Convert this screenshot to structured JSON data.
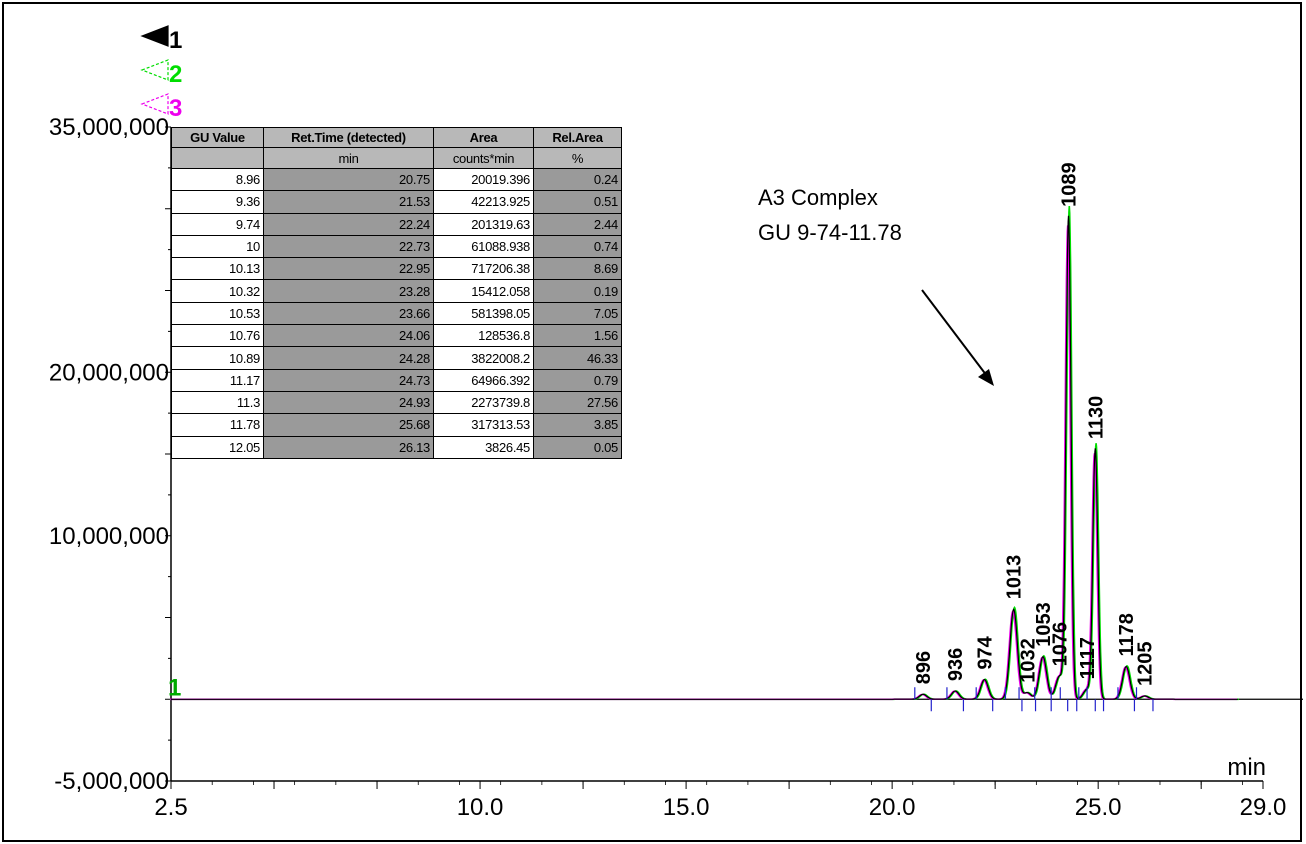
{
  "chart_data": {
    "type": "line",
    "xlabel": "min",
    "ylabel": "",
    "xlim": [
      2.5,
      29.0
    ],
    "ylim": [
      -5000000,
      35000000
    ],
    "x_ticks": [
      2.5,
      10.0,
      15.0,
      20.0,
      25.0,
      29.0
    ],
    "x_tick_labels": [
      "2.5",
      "10.0",
      "15.0",
      "20.0",
      "25.0",
      "29.0"
    ],
    "y_ticks": [
      -5000000,
      10000000,
      20000000,
      35000000
    ],
    "y_tick_labels": [
      "-5,000,000",
      "10,000,000",
      "20,000,000",
      "35,000,000"
    ],
    "trace_markers": [
      {
        "label": "1",
        "color": "#000000"
      },
      {
        "label": "2",
        "color": "#00dd00"
      },
      {
        "label": "3",
        "color": "#ee00ee"
      }
    ],
    "baseline_marker": "1",
    "peaks": [
      {
        "label": "896",
        "x": 20.75,
        "y": 300000
      },
      {
        "label": "936",
        "x": 21.53,
        "y": 500000
      },
      {
        "label": "974",
        "x": 22.24,
        "y": 1200000
      },
      {
        "label": "1013",
        "x": 22.95,
        "y": 5500000
      },
      {
        "label": "1032",
        "x": 23.28,
        "y": 400000
      },
      {
        "label": "1053",
        "x": 23.66,
        "y": 2600000
      },
      {
        "label": "1076",
        "x": 24.06,
        "y": 1400000
      },
      {
        "label": "1089",
        "x": 24.28,
        "y": 29500000
      },
      {
        "label": "1117",
        "x": 24.73,
        "y": 600000
      },
      {
        "label": "1130",
        "x": 24.93,
        "y": 15300000
      },
      {
        "label": "1178",
        "x": 25.68,
        "y": 2000000
      },
      {
        "label": "1205",
        "x": 26.13,
        "y": 200000
      }
    ],
    "series": [
      {
        "color": "#000000"
      },
      {
        "color": "#00dd00"
      },
      {
        "color": "#ee00ee"
      }
    ],
    "annotation": {
      "line1": "A3 Complex",
      "line2": "GU 9-74-11.78"
    },
    "table": {
      "headers": [
        "GU Value",
        "Ret.Time (detected)",
        "Area",
        "Rel.Area"
      ],
      "units": [
        "",
        "min",
        "counts*min",
        "%"
      ],
      "rows": [
        [
          "8.96",
          "20.75",
          "20019.396",
          "0.24"
        ],
        [
          "9.36",
          "21.53",
          "42213.925",
          "0.51"
        ],
        [
          "9.74",
          "22.24",
          "201319.63",
          "2.44"
        ],
        [
          "10",
          "22.73",
          "61088.938",
          "0.74"
        ],
        [
          "10.13",
          "22.95",
          "717206.38",
          "8.69"
        ],
        [
          "10.32",
          "23.28",
          "15412.058",
          "0.19"
        ],
        [
          "10.53",
          "23.66",
          "581398.05",
          "7.05"
        ],
        [
          "10.76",
          "24.06",
          "128536.8",
          "1.56"
        ],
        [
          "10.89",
          "24.28",
          "3822008.2",
          "46.33"
        ],
        [
          "11.17",
          "24.73",
          "64966.392",
          "0.79"
        ],
        [
          "11.3",
          "24.93",
          "2273739.8",
          "27.56"
        ],
        [
          "11.78",
          "25.68",
          "317313.53",
          "3.85"
        ],
        [
          "12.05",
          "26.13",
          "3826.45",
          "0.05"
        ]
      ]
    }
  }
}
